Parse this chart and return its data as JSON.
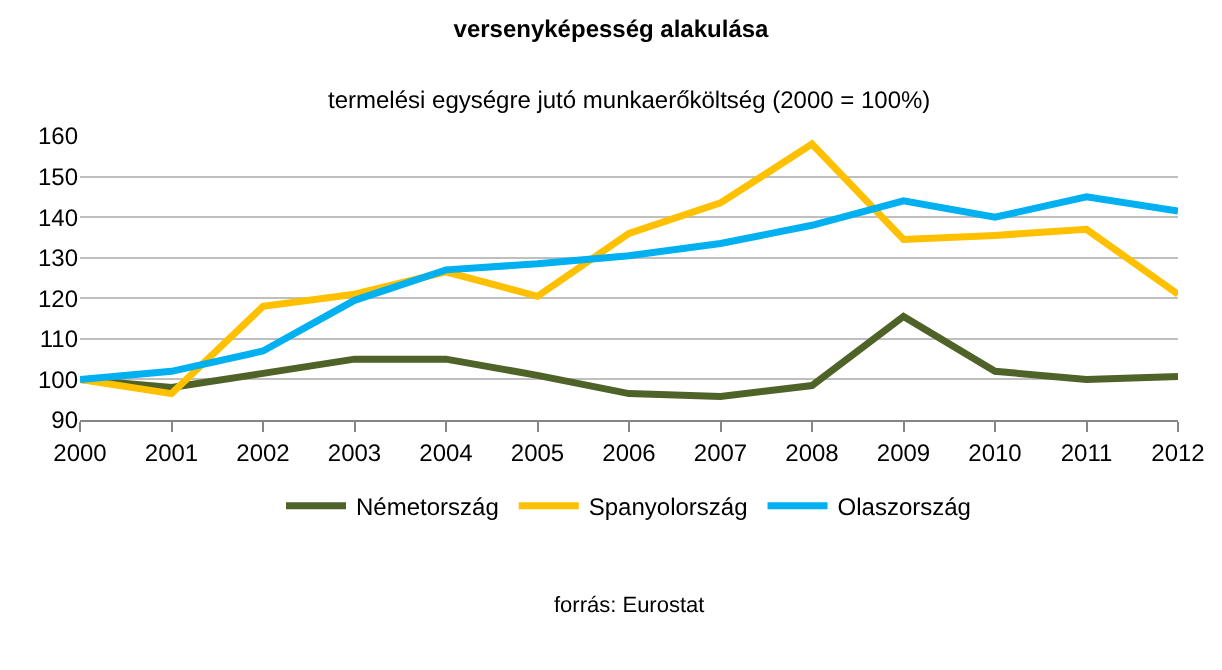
{
  "chart_data": {
    "type": "line",
    "title": "versenyképesség alakulása",
    "subtitle": "termelési egységre jutó munkaerőköltség (2000 = 100%)",
    "categories": [
      "2000",
      "2001",
      "2002",
      "2003",
      "2004",
      "2005",
      "2006",
      "2007",
      "2008",
      "2009",
      "2010",
      "2011",
      "2012"
    ],
    "series": [
      {
        "name": "Németország",
        "color": "#4f6228",
        "values": [
          100,
          98,
          101.5,
          105,
          105,
          101,
          96.5,
          95.8,
          98.5,
          115.5,
          102,
          100,
          100.7
        ]
      },
      {
        "name": "Spanyolország",
        "color": "#ffc000",
        "values": [
          100,
          96.5,
          118,
          121,
          126.5,
          120.5,
          136,
          143.5,
          158,
          134.5,
          135.5,
          137,
          121
        ]
      },
      {
        "name": "Olaszország",
        "color": "#00b0f0",
        "values": [
          100,
          102,
          107,
          119.5,
          127,
          128.5,
          130.5,
          133.5,
          138,
          144,
          140,
          145,
          141.5
        ]
      }
    ],
    "ylim": [
      90,
      160
    ],
    "yticks": [
      90,
      100,
      110,
      120,
      130,
      140,
      150,
      160
    ],
    "grid": "y",
    "legend": "bottom",
    "marker": "none",
    "line_style": "solid",
    "annotations": [
      "forrás: Eurostat"
    ]
  }
}
